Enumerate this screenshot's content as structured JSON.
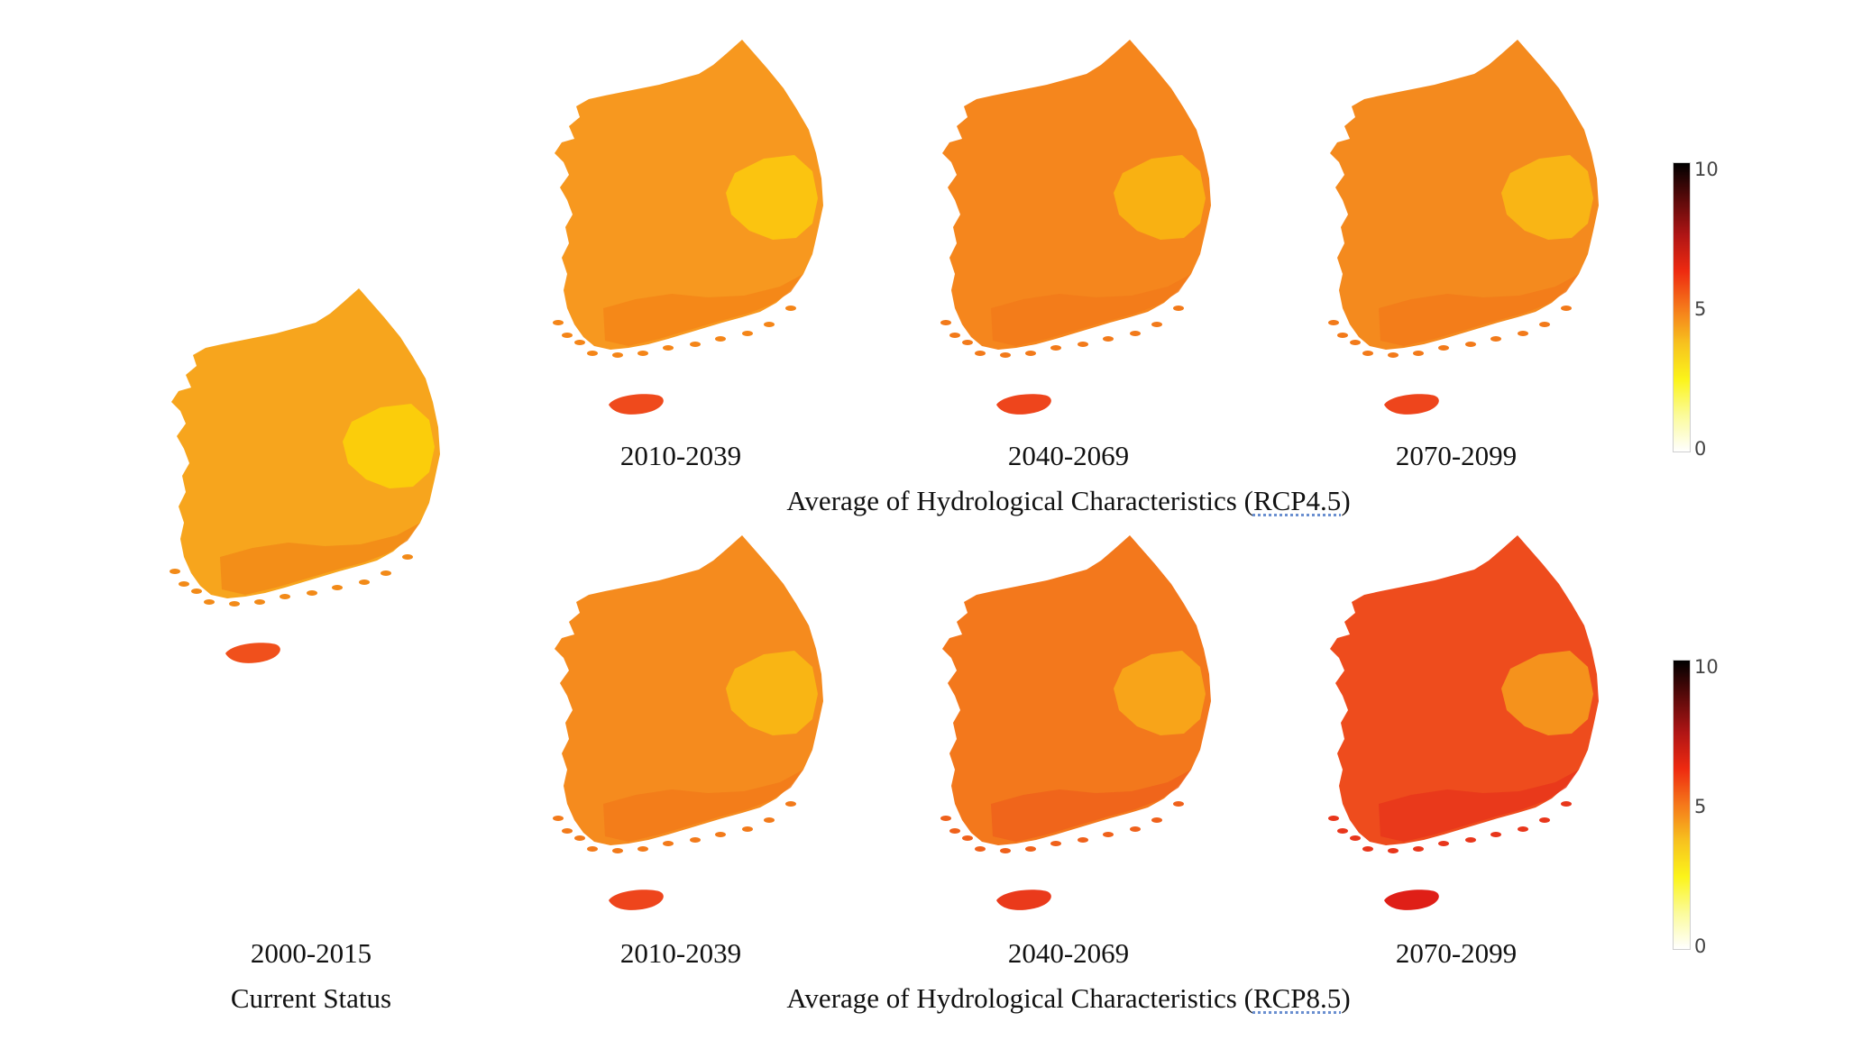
{
  "panels": [
    {
      "id": "current",
      "period": "2000-2015",
      "caption": "Current Status",
      "mainland_color": "#f7a51d",
      "east_color": "#fbd10a",
      "south_color": "#f28a18",
      "jeju_color": "#f0501c"
    },
    {
      "id": "rcp45-1",
      "period": "2010-2039",
      "mainland_color": "#f7981f",
      "east_color": "#fbc90e",
      "south_color": "#f48518",
      "jeju_color": "#ef4a1c"
    },
    {
      "id": "rcp45-2",
      "period": "2040-2069",
      "mainland_color": "#f5861d",
      "east_color": "#f9b612",
      "south_color": "#f27a1a",
      "jeju_color": "#ee451c"
    },
    {
      "id": "rcp45-3",
      "period": "2070-2099",
      "mainland_color": "#f48a1e",
      "east_color": "#f9b914",
      "south_color": "#f27a1a",
      "jeju_color": "#ee451c"
    },
    {
      "id": "rcp85-1",
      "period": "2010-2039",
      "mainland_color": "#f58b1e",
      "east_color": "#f9b913",
      "south_color": "#f27a1a",
      "jeju_color": "#ee451c"
    },
    {
      "id": "rcp85-2",
      "period": "2040-2069",
      "mainland_color": "#f3781c",
      "east_color": "#f8a81a",
      "south_color": "#ef611b",
      "jeju_color": "#ea3a1b"
    },
    {
      "id": "rcp85-3",
      "period": "2070-2099",
      "mainland_color": "#ee4c1d",
      "east_color": "#f59a1d",
      "south_color": "#e8361b",
      "jeju_color": "#df1f17"
    }
  ],
  "group_titles": {
    "rcp45": {
      "prefix": "Average of Hydrological Characteristics (",
      "scenario": "RCP4.5",
      "suffix": ")"
    },
    "rcp85": {
      "prefix": "Average of Hydrological Characteristics (",
      "scenario": "RCP8.5",
      "suffix": ")"
    }
  },
  "legend": {
    "ticks": [
      "10",
      "5",
      "0"
    ],
    "colors": [
      "#000000",
      "#5a0a0a",
      "#b01515",
      "#ee2a10",
      "#f5781a",
      "#f7c21e",
      "#fbf41a",
      "#fbfb9a",
      "#ffffff"
    ]
  }
}
